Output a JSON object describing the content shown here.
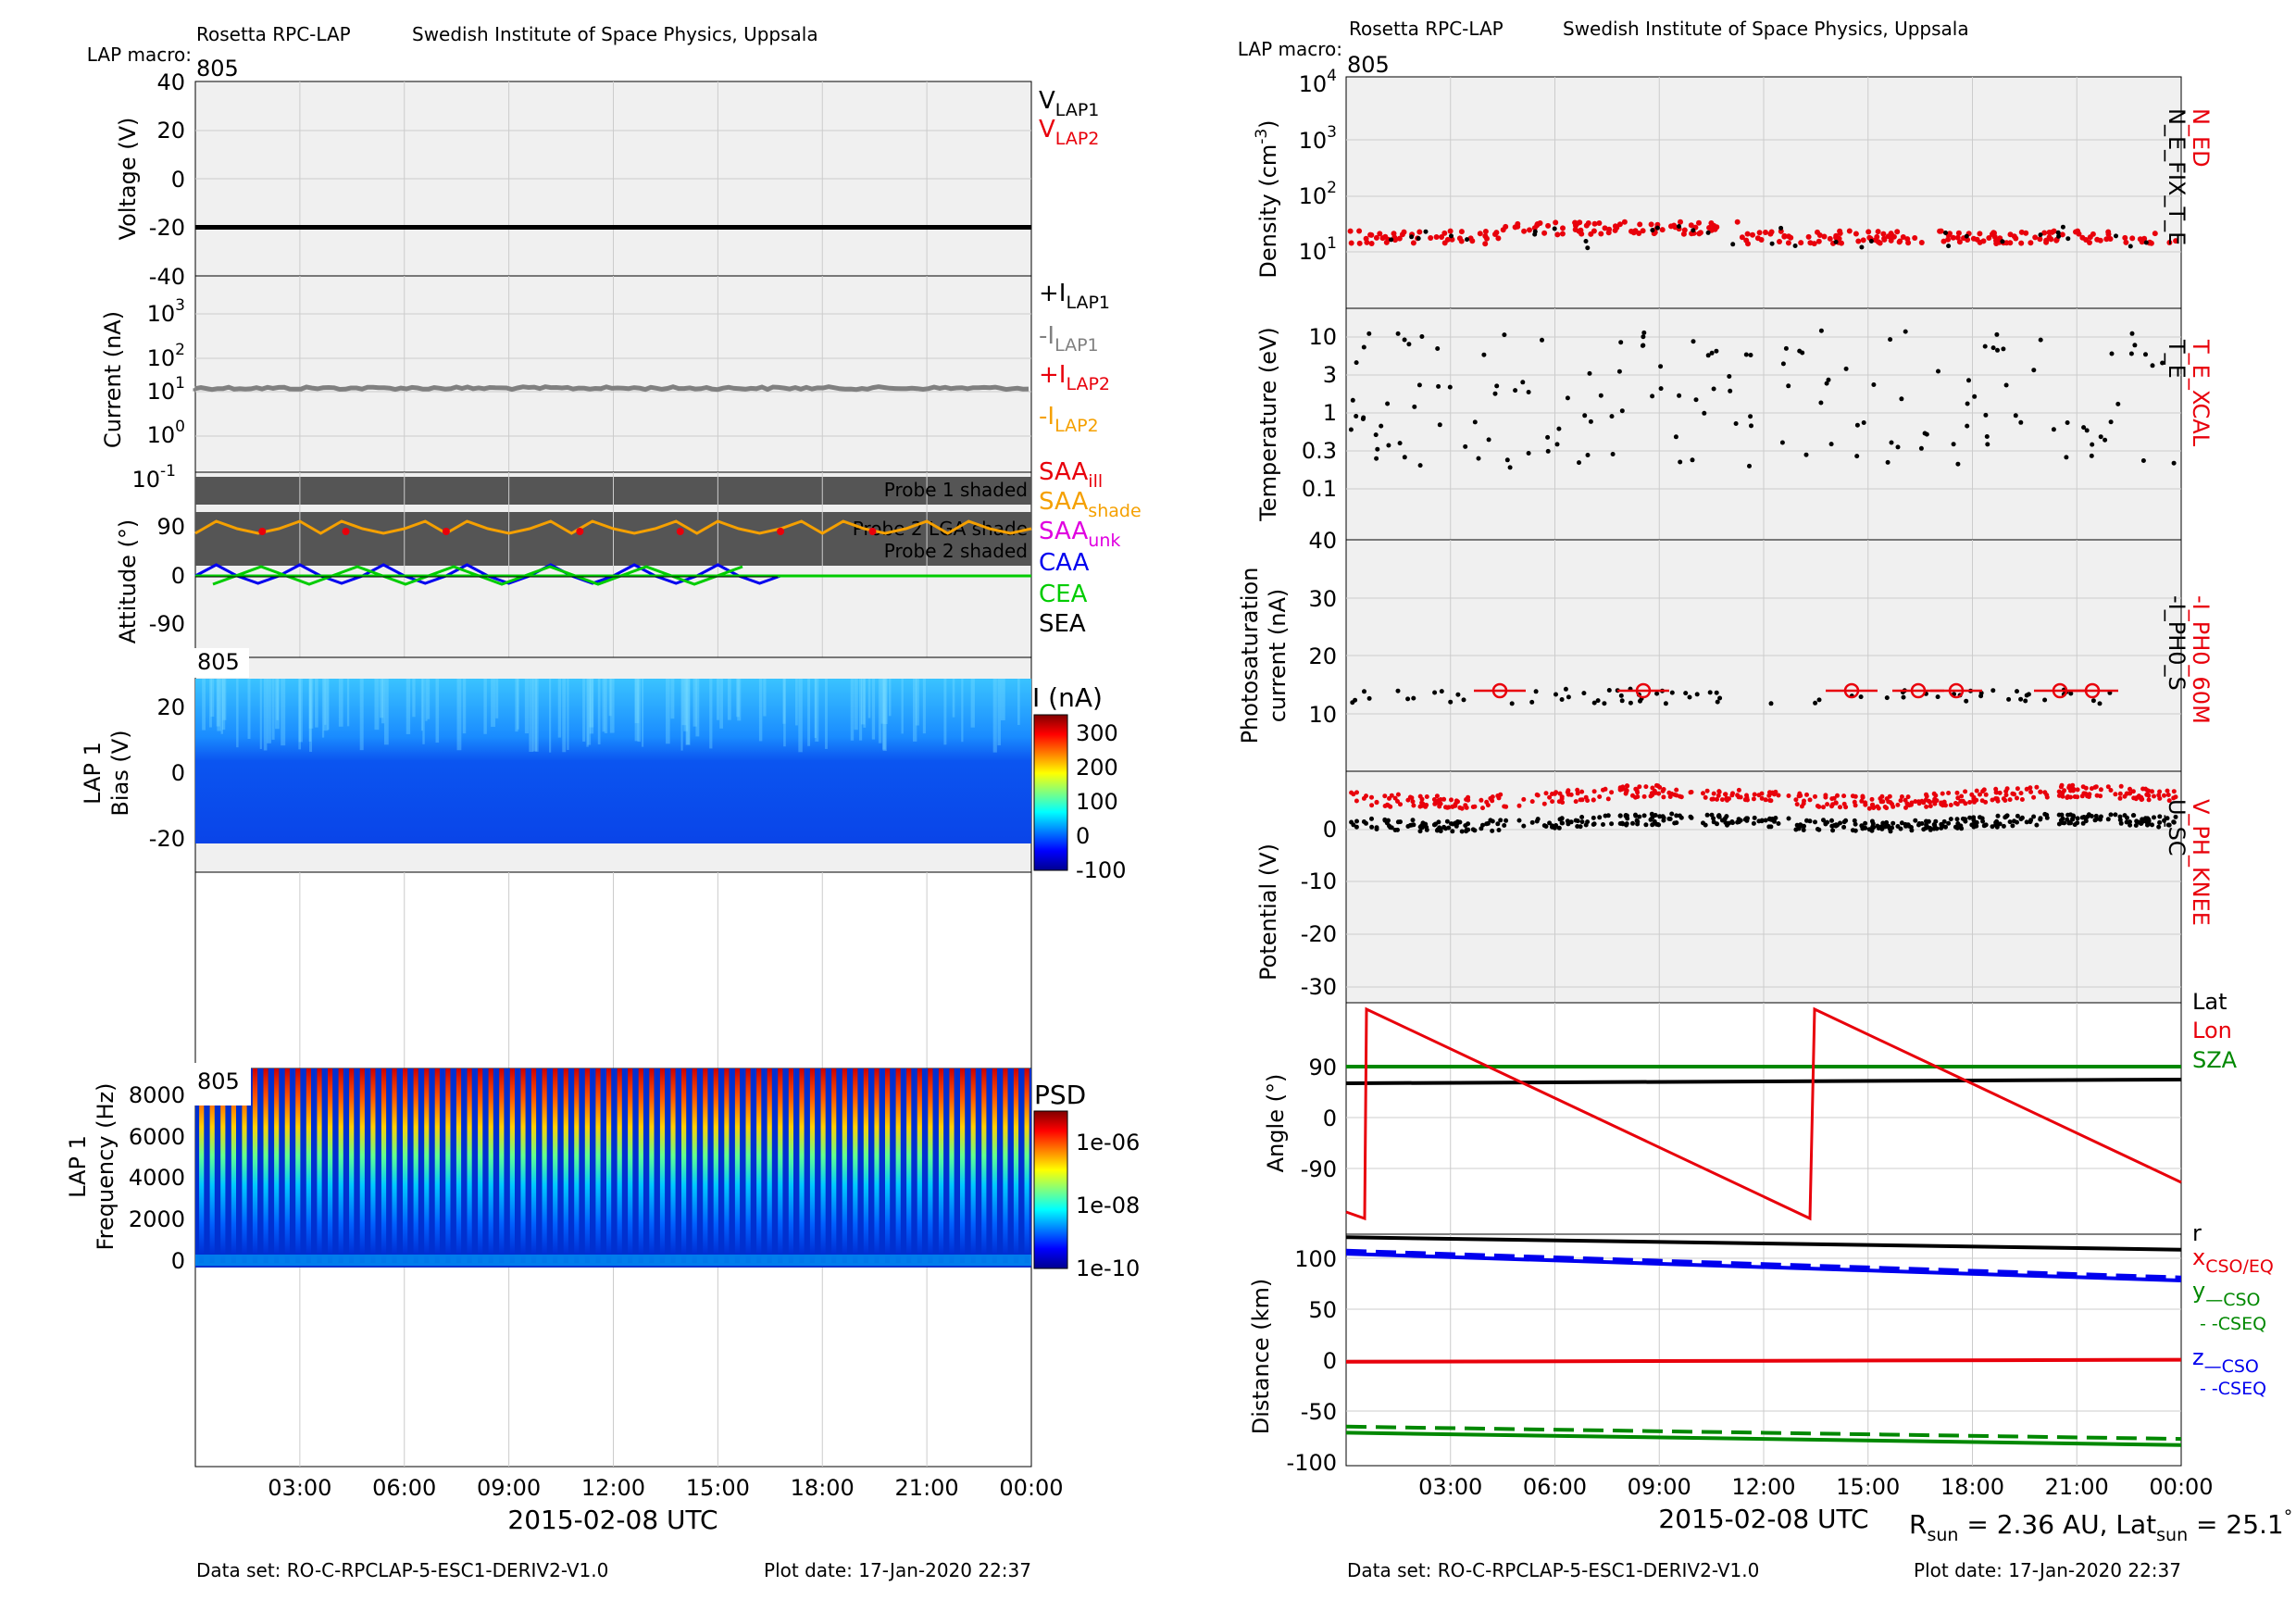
{
  "colors": {
    "black": "#000000",
    "red": "#e8000b",
    "grey": "#808080",
    "orange": "#f5a000",
    "magenta": "#e000e0",
    "blue": "#0000ee",
    "green": "#00cc00",
    "darkgreen": "#008800",
    "panel_bg": "#f0f0f0",
    "shade": "#555555"
  },
  "left": {
    "header_instrument": "Rosetta RPC-LAP",
    "header_institute": "Swedish Institute of Space Physics, Uppsala",
    "macro_label": "LAP macro:",
    "macro_value": "805",
    "xlabel": "2015-02-08 UTC",
    "dataset": "Data set: RO-C-RPCLAP-5-ESC1-DERIV2-V1.0",
    "plotdate": "Plot date: 17-Jan-2020 22:37"
  },
  "right": {
    "header_instrument": "Rosetta RPC-LAP",
    "header_institute": "Swedish Institute of Space Physics, Uppsala",
    "macro_label": "LAP macro:",
    "macro_value": "805",
    "xlabel": "2015-02-08 UTC",
    "dataset": "Data set: RO-C-RPCLAP-5-ESC1-DERIV2-V1.0",
    "plotdate": "Plot date: 17-Jan-2020 22:37",
    "rsun_text": "R",
    "rsun_sub": "sun",
    "rsun_value": " = 2.36 AU, Lat",
    "lat_sub": "sun",
    "lat_value": " = 25.1",
    "deg": "°"
  },
  "time_ticks": [
    "03:00",
    "06:00",
    "09:00",
    "12:00",
    "15:00",
    "18:00",
    "21:00",
    "00:00"
  ],
  "chart_data": [
    {
      "id": "voltage",
      "type": "line",
      "ylabel": "Voltage (V)",
      "ylim": [
        -40,
        40
      ],
      "yticks": [
        "40",
        "20",
        "0",
        "-20",
        "-40"
      ],
      "series": [
        {
          "name": "V",
          "sub": "LAP1",
          "color": "#000000",
          "value": -20
        },
        {
          "name": "V",
          "sub": "LAP2",
          "color": "#e8000b"
        }
      ]
    },
    {
      "id": "current",
      "type": "line",
      "ylabel": "Current (nA)",
      "scale": "log",
      "yticks": [
        "10^3",
        "10^2",
        "10^1",
        "10^0",
        "10^-1"
      ],
      "series": [
        {
          "name": "+I",
          "sub": "LAP1",
          "color": "#000000"
        },
        {
          "name": "-I",
          "sub": "LAP1",
          "color": "#808080",
          "value": 12
        },
        {
          "name": "+I",
          "sub": "LAP2",
          "color": "#e8000b"
        },
        {
          "name": "-I",
          "sub": "LAP2",
          "color": "#f5a000"
        }
      ]
    },
    {
      "id": "attitude",
      "type": "line",
      "ylabel": "Attitude (°)",
      "yticks": [
        "90",
        "0",
        "-90"
      ],
      "bands": [
        "Probe 1 shaded",
        "Probe 2 LGA shade",
        "Probe 2 shaded"
      ],
      "series": [
        {
          "name": "SAA",
          "sub": "ill",
          "color": "#e8000b"
        },
        {
          "name": "SAA",
          "sub": "shade",
          "color": "#f5a000"
        },
        {
          "name": "SAA",
          "sub": "unk",
          "color": "#e000e0"
        },
        {
          "name": "CAA",
          "color": "#0000ee"
        },
        {
          "name": "CEA",
          "color": "#00cc00"
        },
        {
          "name": "SEA",
          "color": "#000000"
        }
      ]
    },
    {
      "id": "sweep",
      "type": "heatmap",
      "macro": "805",
      "ylabel1": "LAP 1",
      "ylabel2": "Bias (V)",
      "yticks": [
        "20",
        "0",
        "-20"
      ],
      "ylim": [
        -20,
        27
      ],
      "colorbar_label": "I (nA)",
      "colorbar_ticks": [
        "300",
        "200",
        "100",
        "0",
        "-100"
      ]
    },
    {
      "id": "spectrum",
      "type": "heatmap",
      "macro": "805",
      "ylabel1": "LAP 1",
      "ylabel2": "Frequency (Hz)",
      "yticks": [
        "8000",
        "6000",
        "4000",
        "2000",
        "0"
      ],
      "ylim": [
        0,
        9000
      ],
      "colorbar_label": "PSD",
      "colorbar_ticks": [
        "1e-06",
        "1e-08",
        "1e-10"
      ]
    },
    {
      "id": "density",
      "type": "scatter",
      "ylabel": "Density (cm",
      "ylabel_sup": "-3",
      "ylabel_end": ")",
      "scale": "log",
      "yticks": [
        "10^4",
        "10^3",
        "10^2",
        "10^1"
      ],
      "labels": [
        {
          "text": "N_ED",
          "color": "#e8000b"
        },
        {
          "text": "N_E_FIX_T_E",
          "color": "#000000"
        }
      ],
      "series": [
        {
          "name": "N_ED",
          "color": "#e8000b",
          "level": 18
        },
        {
          "name": "N_E_FIX_T_E",
          "color": "#000000",
          "level": 18
        }
      ]
    },
    {
      "id": "temperature",
      "type": "scatter",
      "ylabel": "Temperature (eV)",
      "scale": "log",
      "yticks": [
        "10",
        "3",
        "1",
        "0.3",
        "0.1"
      ],
      "labels": [
        {
          "text": "T_E_XCAL",
          "color": "#e8000b"
        },
        {
          "text": "T_E",
          "color": "#000000"
        }
      ]
    },
    {
      "id": "photosat",
      "type": "scatter",
      "ylabel": "Photosaturation",
      "ylabel2": "current (nA)",
      "yticks": [
        "40",
        "30",
        "20",
        "10"
      ],
      "ylim": [
        10,
        40
      ],
      "labels": [
        {
          "text": "-I_PH0_60M",
          "color": "#e8000b"
        },
        {
          "text": "-I_PH0_S",
          "color": "#000000"
        }
      ]
    },
    {
      "id": "potential",
      "type": "scatter",
      "ylabel": "Potential (V)",
      "yticks": [
        "0",
        "-10",
        "-20",
        "-30"
      ],
      "ylim": [
        -32,
        4
      ],
      "labels": [
        {
          "text": "V_PH_KNEE",
          "color": "#e8000b"
        },
        {
          "text": "U_SC",
          "color": "#000000"
        }
      ],
      "series": [
        {
          "name": "V_PH_KNEE",
          "color": "#e8000b",
          "level": 0
        },
        {
          "name": "U_SC",
          "color": "#000000",
          "level": -4
        }
      ]
    },
    {
      "id": "angle",
      "type": "line",
      "ylabel": "Angle (°)",
      "yticks": [
        "90",
        "0",
        "-90"
      ],
      "ylim": [
        -180,
        180
      ],
      "labels": [
        {
          "text": "Lat",
          "color": "#000000"
        },
        {
          "text": "Lon",
          "color": "#e8000b"
        },
        {
          "text": "SZA",
          "color": "#008800"
        }
      ]
    },
    {
      "id": "distance",
      "type": "line",
      "ylabel": "Distance (km)",
      "yticks": [
        "100",
        "50",
        "0",
        "-50",
        "-100"
      ],
      "ylim": [
        -100,
        125
      ],
      "labels": [
        {
          "text": "r",
          "color": "#000000"
        },
        {
          "text": "x",
          "sub": "CSO/EQ",
          "color": "#e8000b"
        },
        {
          "text": "y",
          "sub": "—CSO",
          "color": "#008800"
        },
        {
          "text": "- -CSEQ",
          "color": "#008800"
        },
        {
          "text": "z",
          "sub": "—CSO",
          "color": "#0000ee"
        },
        {
          "text": "- -CSEQ",
          "color": "#0000ee"
        }
      ],
      "series": [
        {
          "name": "r",
          "color": "#000000",
          "start": 122,
          "end": 110
        },
        {
          "name": "x",
          "color": "#e8000b",
          "start": 1,
          "end": 3
        },
        {
          "name": "z CSO",
          "color": "#0000ee",
          "start": 106,
          "end": 80
        },
        {
          "name": "z CSEQ",
          "color": "#0000ee",
          "start": 109,
          "end": 83
        },
        {
          "name": "y CSO",
          "color": "#008800",
          "start": -68,
          "end": -80
        },
        {
          "name": "y CSEQ",
          "color": "#008800",
          "start": -62,
          "end": -74
        }
      ]
    }
  ]
}
